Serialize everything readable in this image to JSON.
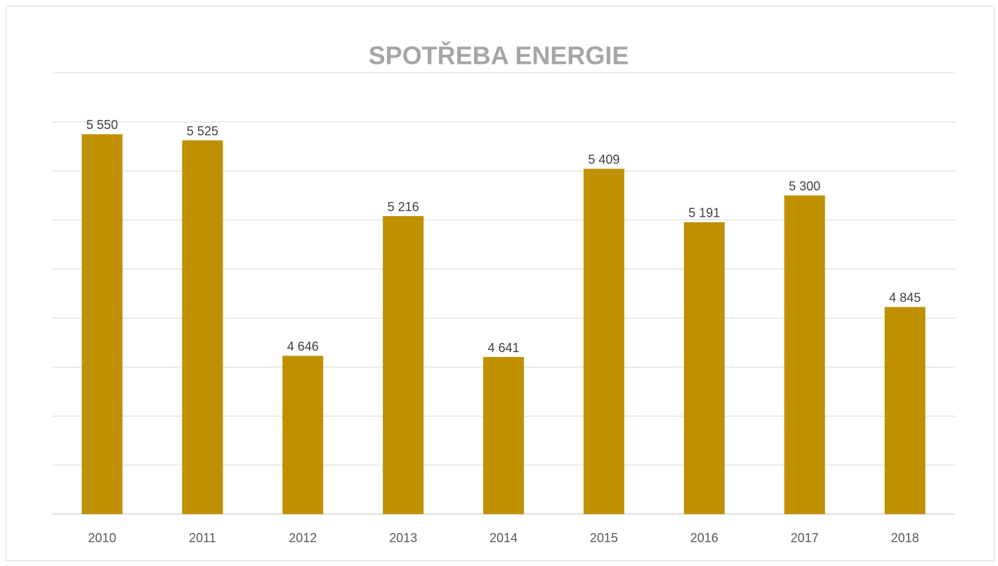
{
  "chart_data": {
    "type": "bar",
    "title": "SPOTŘEBA ENERGIE",
    "categories": [
      "2010",
      "2011",
      "2012",
      "2013",
      "2014",
      "2015",
      "2016",
      "2017",
      "2018"
    ],
    "values": [
      5550,
      5525,
      4646,
      5216,
      4641,
      5409,
      5191,
      5300,
      4845
    ],
    "value_labels": [
      "5 550",
      "5 525",
      "4 646",
      "5 216",
      "4 641",
      "5 409",
      "5 191",
      "5 300",
      "4 845"
    ],
    "color": "#bf9000",
    "ylim": [
      4000,
      5800
    ],
    "yticks": [
      4000,
      4200,
      4400,
      4600,
      4800,
      5000,
      5200,
      5400,
      5600,
      5800
    ],
    "grid": true
  }
}
